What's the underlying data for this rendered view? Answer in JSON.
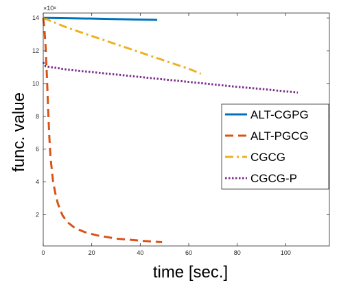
{
  "chart_data": {
    "type": "line",
    "xlabel": "time [sec.]",
    "ylabel": "func. value",
    "y_exponent_label": "×10⁸",
    "xlim": [
      0,
      118
    ],
    "ylim": [
      0.1,
      14.3
    ],
    "x_ticks": [
      0,
      20,
      40,
      60,
      80,
      100
    ],
    "y_ticks": [
      2,
      4,
      6,
      8,
      10,
      12,
      14
    ],
    "grid": false,
    "legend_position": "right",
    "series": [
      {
        "name": "ALT-CGPG",
        "color": "#0072BD",
        "dash": "solid",
        "x": [
          0,
          5,
          10,
          20,
          30,
          40,
          47
        ],
        "y": [
          14.0,
          13.99,
          13.98,
          13.96,
          13.93,
          13.9,
          13.88
        ]
      },
      {
        "name": "ALT-PGCG",
        "color": "#D95319",
        "dash": "dashed",
        "x": [
          0,
          0.5,
          1,
          1.5,
          2,
          2.5,
          3,
          4,
          5,
          6,
          7,
          8,
          10,
          13,
          17,
          22,
          30,
          40,
          49
        ],
        "y": [
          14.0,
          13.3,
          12.2,
          10.5,
          8.5,
          6.8,
          5.5,
          4.1,
          3.3,
          2.7,
          2.3,
          1.95,
          1.55,
          1.2,
          0.95,
          0.75,
          0.55,
          0.42,
          0.33
        ]
      },
      {
        "name": "CGCG",
        "color": "#EDB120",
        "dash": "dashdot",
        "x": [
          0,
          10,
          20,
          30,
          40,
          50,
          60,
          65
        ],
        "y": [
          14.0,
          13.4,
          12.9,
          12.4,
          11.9,
          11.4,
          10.9,
          10.6
        ]
      },
      {
        "name": "CGCG-P",
        "color": "#7E2F8E",
        "dash": "dotted",
        "x": [
          0,
          1,
          10,
          20,
          30,
          40,
          50,
          60,
          70,
          80,
          90,
          100,
          105
        ],
        "y": [
          11.3,
          11.05,
          10.85,
          10.7,
          10.55,
          10.4,
          10.25,
          10.1,
          9.95,
          9.8,
          9.67,
          9.52,
          9.45
        ]
      }
    ]
  }
}
